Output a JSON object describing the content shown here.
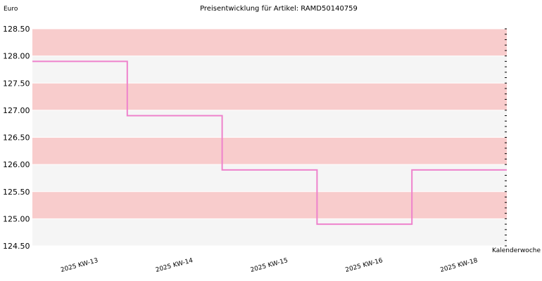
{
  "chart_data": {
    "type": "line",
    "title": "Preisentwicklung für Artikel: RAMD50140759",
    "ylabel": "Euro",
    "xlabel": "Kalenderwoche",
    "ylim": [
      124.5,
      128.5
    ],
    "y_ticks": [
      "128.50",
      "128.00",
      "127.50",
      "127.00",
      "126.50",
      "126.00",
      "125.50",
      "125.00",
      "124.50"
    ],
    "categories": [
      "2025 KW-13",
      "2025 KW-14",
      "2025 KW-15",
      "2025 KW-16",
      "2025 KW-18"
    ],
    "values": [
      127.9,
      126.9,
      125.9,
      124.9,
      125.9
    ],
    "step": true,
    "grid": true,
    "colors": {
      "line": "#ee82cc",
      "band_a": "#f8cccc",
      "band_b": "#f5f5f5",
      "gridline": "#ffffff"
    }
  }
}
